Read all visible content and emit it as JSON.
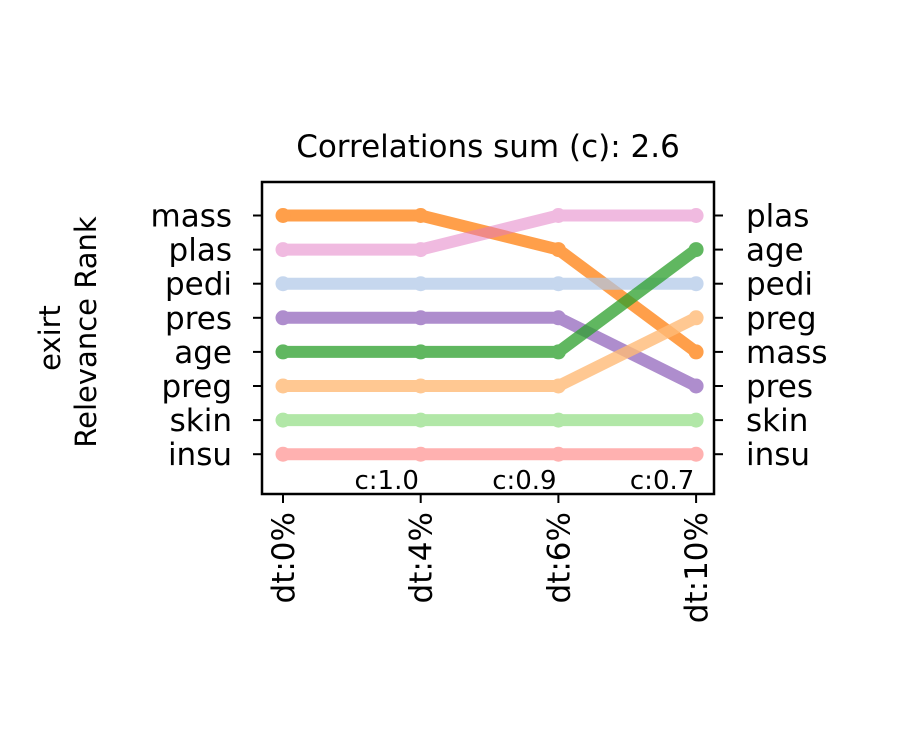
{
  "chart_data": {
    "type": "line",
    "title": "Correlations sum (c): 2.6",
    "ylabel_line1": "exirt",
    "ylabel_line2": "Relevance Rank",
    "categories": [
      "dt:0%",
      "dt:4%",
      "dt:6%",
      "dt:10%"
    ],
    "left_order": [
      "mass",
      "plas",
      "pedi",
      "pres",
      "age",
      "preg",
      "skin",
      "insu"
    ],
    "right_order": [
      "plas",
      "age",
      "pedi",
      "preg",
      "mass",
      "pres",
      "skin",
      "insu"
    ],
    "correlation_labels": [
      "c:1.0",
      "c:0.9",
      "c:0.7"
    ],
    "rank_range": [
      1,
      8
    ],
    "grid": false,
    "series": [
      {
        "name": "mass",
        "ranks": [
          1,
          1,
          2,
          5
        ],
        "color": "#ff7f0e",
        "opacity": 0.75
      },
      {
        "name": "plas",
        "ranks": [
          2,
          2,
          1,
          1
        ],
        "color": "#e377c2",
        "opacity": 0.5
      },
      {
        "name": "pedi",
        "ranks": [
          3,
          3,
          3,
          3
        ],
        "color": "#aec7e8",
        "opacity": 0.7
      },
      {
        "name": "pres",
        "ranks": [
          4,
          4,
          4,
          6
        ],
        "color": "#9467bd",
        "opacity": 0.75
      },
      {
        "name": "age",
        "ranks": [
          5,
          5,
          5,
          2
        ],
        "color": "#2ca02c",
        "opacity": 0.75
      },
      {
        "name": "preg",
        "ranks": [
          6,
          6,
          6,
          4
        ],
        "color": "#ffbb78",
        "opacity": 0.8
      },
      {
        "name": "skin",
        "ranks": [
          7,
          7,
          7,
          7
        ],
        "color": "#98df8a",
        "opacity": 0.75
      },
      {
        "name": "insu",
        "ranks": [
          8,
          8,
          8,
          8
        ],
        "color": "#ff9896",
        "opacity": 0.75
      }
    ]
  }
}
